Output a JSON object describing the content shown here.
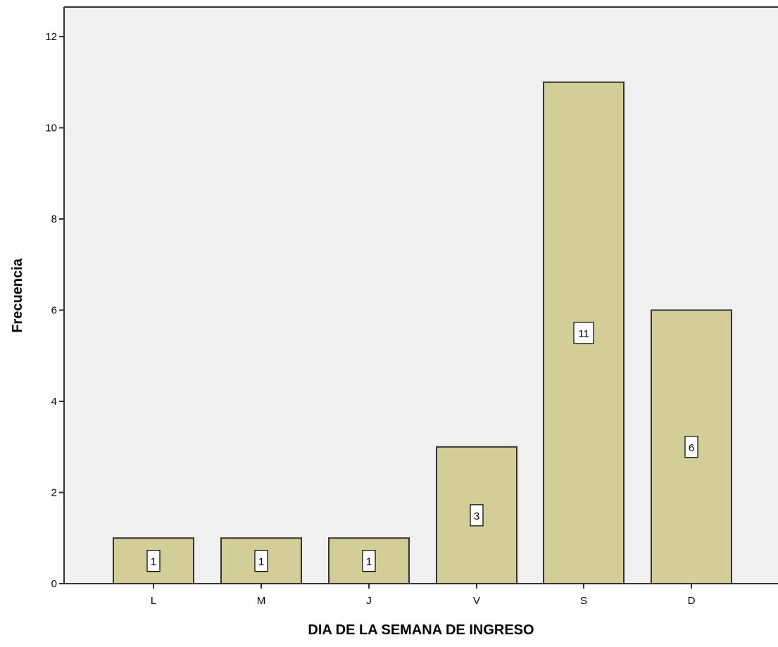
{
  "chart_data": {
    "type": "bar",
    "categories": [
      "L",
      "M",
      "J",
      "V",
      "S",
      "D"
    ],
    "values": [
      1,
      1,
      1,
      3,
      11,
      6
    ],
    "data_labels": [
      "1",
      "1",
      "1",
      "3",
      "11",
      "6"
    ],
    "title": "",
    "xlabel": "DIA DE LA SEMANA DE INGRESO",
    "ylabel": "Frecuencia",
    "ylim": [
      0,
      12
    ],
    "yticks": [
      0,
      2,
      4,
      6,
      8,
      10,
      12
    ],
    "ytick_labels": [
      "0",
      "2",
      "4",
      "6",
      "8",
      "10",
      "12"
    ],
    "grid": false,
    "legend": "none",
    "colors": {
      "plot_background": "#f0f0f0",
      "bar_fill": "#d3ce97",
      "bar_stroke": "#333333",
      "axis": "#333333",
      "label_box": "#ffffff"
    }
  }
}
